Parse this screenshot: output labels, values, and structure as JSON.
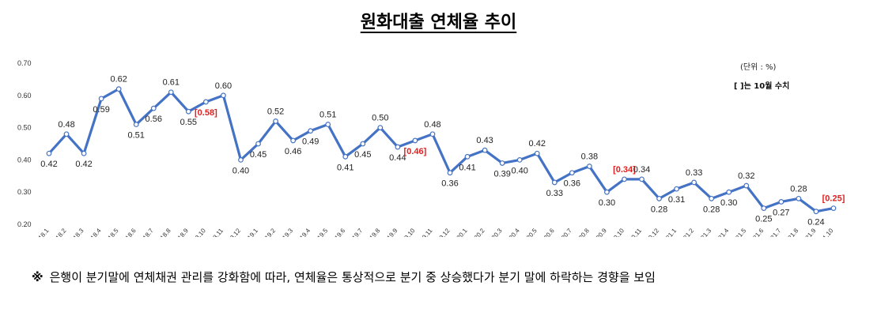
{
  "title": "원화대출 연체율 추이",
  "unit_note": "(단위 : %)",
  "bracket_note": "[   ]는 10월 수치",
  "footnote": {
    "mark": "※",
    "text": "은행이 분기말에 연체채권 관리를 강화함에 따라, 연체율은 통상적으로 분기 중 상승했다가 분기 말에 하락하는 경향을 보임"
  },
  "chart_data": {
    "type": "line",
    "title": "원화대출 연체율 추이",
    "xlabel": "",
    "ylabel": "",
    "ylim": [
      0.2,
      0.7
    ],
    "yticks": [
      "0.70",
      "0.60",
      "0.50",
      "0.40",
      "0.30",
      "0.20"
    ],
    "grid": false,
    "line_color": "#4472c4",
    "highlight_color": "#e02020",
    "categories": [
      "'18.1",
      "'18.2",
      "'18.3",
      "'18.4",
      "'18.5",
      "'18.6",
      "'18.7",
      "'18.8",
      "'18.9",
      "'18.10",
      "'18.11",
      "'18.12",
      "'19.1",
      "'19.2",
      "'19.3",
      "'19.4",
      "'19.5",
      "'19.6",
      "'19.7",
      "'19.8",
      "'19.9",
      "'19.10",
      "'19.11",
      "'19.12",
      "'20.1",
      "'20.2",
      "'20.3",
      "'20.4",
      "'20.5",
      "'20.6",
      "'20.7",
      "'20.8",
      "'20.9",
      "'20.10",
      "'20.11",
      "'20.12",
      "'21.1",
      "'21.2",
      "'21.3",
      "'21.4",
      "'21.5",
      "'21.6",
      "'21.7",
      "'21.8",
      "'21.9",
      "'21.10"
    ],
    "series": [
      {
        "values": [
          0.42,
          0.48,
          0.42,
          0.59,
          0.62,
          0.51,
          0.56,
          0.61,
          0.55,
          0.58,
          0.6,
          0.4,
          0.45,
          0.52,
          0.46,
          0.49,
          0.51,
          0.41,
          0.45,
          0.5,
          0.44,
          0.46,
          0.48,
          0.36,
          0.41,
          0.43,
          0.39,
          0.4,
          0.42,
          0.33,
          0.36,
          0.38,
          0.3,
          0.34,
          0.34,
          0.28,
          0.31,
          0.33,
          0.28,
          0.3,
          0.32,
          0.25,
          0.27,
          0.28,
          0.24,
          0.25
        ],
        "labels": [
          "0.42",
          "0.48",
          "0.42",
          "0.59",
          "0.62",
          "0.51",
          "0.56",
          "0.61",
          "0.55",
          "[0.58]",
          "0.60",
          "0.40",
          "0.45",
          "0.52",
          "0.46",
          "0.49",
          "0.51",
          "0.41",
          "0.45",
          "0.50",
          "0.44",
          "[0.46]",
          "0.48",
          "0.36",
          "0.41",
          "0.43",
          "0.39",
          "0.40",
          "0.42",
          "0.33",
          "0.36",
          "0.38",
          "0.30",
          "[0.34]",
          "0.34",
          "0.28",
          "0.31",
          "0.33",
          "0.28",
          "0.30",
          "0.32",
          "0.25",
          "0.27",
          "0.28",
          "0.24",
          "[0.25]"
        ],
        "highlight": [
          9,
          21,
          33,
          45
        ]
      }
    ]
  }
}
